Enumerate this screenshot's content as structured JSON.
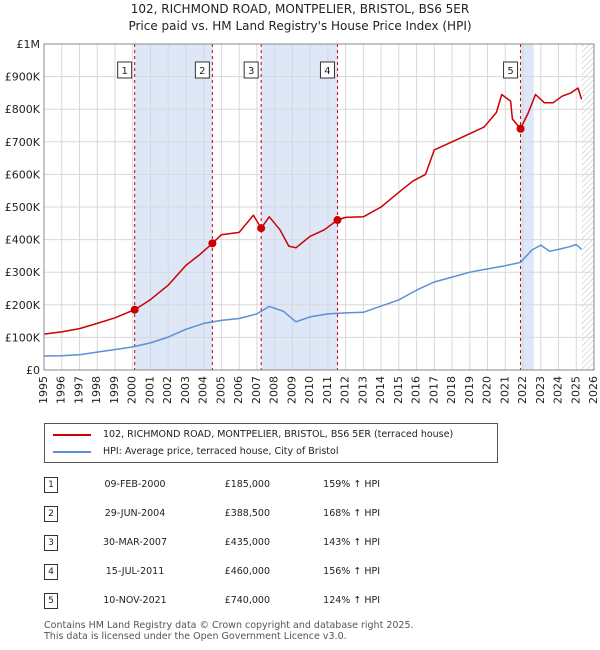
{
  "title_line1": "102, RICHMOND ROAD, MONTPELIER, BRISTOL, BS6 5ER",
  "title_line2": "Price paid vs. HM Land Registry's House Price Index (HPI)",
  "colors": {
    "property": "#cc0000",
    "hpi": "#5b8fd6",
    "shade": "#dde7f7",
    "grid": "#d8d8d8",
    "vline": "#cc0000"
  },
  "chart_data": {
    "type": "line",
    "x_range": [
      1995,
      2026
    ],
    "ylim": [
      0,
      1000000
    ],
    "y_ticks": [
      {
        "value": 0,
        "label": "£0"
      },
      {
        "value": 100000,
        "label": "£100K"
      },
      {
        "value": 200000,
        "label": "£200K"
      },
      {
        "value": 300000,
        "label": "£300K"
      },
      {
        "value": 400000,
        "label": "£400K"
      },
      {
        "value": 500000,
        "label": "£500K"
      },
      {
        "value": 600000,
        "label": "£600K"
      },
      {
        "value": 700000,
        "label": "£700K"
      },
      {
        "value": 800000,
        "label": "£800K"
      },
      {
        "value": 900000,
        "label": "£900K"
      },
      {
        "value": 1000000,
        "label": "£1M"
      }
    ],
    "x_ticks": [
      "1995",
      "1996",
      "1997",
      "1998",
      "1999",
      "2000",
      "2001",
      "2002",
      "2003",
      "2004",
      "2005",
      "2006",
      "2007",
      "2008",
      "2009",
      "2010",
      "2011",
      "2012",
      "2013",
      "2014",
      "2015",
      "2016",
      "2017",
      "2018",
      "2019",
      "2020",
      "2021",
      "2022",
      "2023",
      "2024",
      "2025",
      "2026"
    ],
    "grid": true,
    "series": [
      {
        "name": "102, RICHMOND ROAD, MONTPELIER, BRISTOL, BS6 5ER (terraced house)",
        "x": [
          1995,
          1996,
          1997,
          1998,
          1999,
          2000.11,
          2001,
          2002,
          2003,
          2003.8,
          2004.49,
          2005,
          2006,
          2006.8,
          2007.24,
          2007.7,
          2008.3,
          2008.8,
          2009.2,
          2010,
          2010.8,
          2011.54,
          2012,
          2013,
          2014,
          2015,
          2015.8,
          2016.5,
          2017,
          2018,
          2019,
          2019.8,
          2020.5,
          2020.8,
          2021.3,
          2021.4,
          2021.86,
          2022.3,
          2022.7,
          2023.2,
          2023.7,
          2024.2,
          2024.7,
          2025.1,
          2025.3
        ],
        "y": [
          110000,
          117000,
          127000,
          143000,
          160000,
          185000,
          216000,
          260000,
          321000,
          355000,
          388500,
          415000,
          422000,
          475000,
          435000,
          470000,
          430000,
          380000,
          375000,
          410000,
          430000,
          460000,
          468000,
          470000,
          500000,
          545000,
          580000,
          600000,
          675000,
          700000,
          725000,
          745000,
          790000,
          845000,
          825000,
          770000,
          740000,
          790000,
          845000,
          820000,
          820000,
          840000,
          850000,
          865000,
          830000
        ]
      },
      {
        "name": "HPI: Average price, terraced house, City of Bristol",
        "x": [
          1995,
          1996,
          1997,
          1998,
          1999,
          2000,
          2001,
          2002,
          2003,
          2004,
          2005,
          2006,
          2007,
          2007.7,
          2008.5,
          2009.2,
          2010,
          2011,
          2012,
          2013,
          2014,
          2015,
          2016,
          2017,
          2018,
          2019,
          2020,
          2021,
          2021.86,
          2022.5,
          2023,
          2023.5,
          2024,
          2024.6,
          2025,
          2025.3
        ],
        "y": [
          43000,
          44000,
          47000,
          55000,
          63000,
          71000,
          83000,
          101000,
          125000,
          143000,
          152000,
          158000,
          172000,
          195000,
          180000,
          148000,
          163000,
          172000,
          175000,
          177000,
          196000,
          215000,
          245000,
          270000,
          285000,
          300000,
          310000,
          320000,
          330000,
          368000,
          383000,
          364000,
          370000,
          378000,
          385000,
          370000
        ]
      }
    ],
    "transactions": [
      {
        "num": "1",
        "x": 2000.11,
        "y": 185000,
        "date": "09-FEB-2000",
        "price": "£185,000",
        "hpi": "159% ↑ HPI"
      },
      {
        "num": "2",
        "x": 2004.49,
        "y": 388500,
        "date": "29-JUN-2004",
        "price": "£388,500",
        "hpi": "168% ↑ HPI"
      },
      {
        "num": "3",
        "x": 2007.24,
        "y": 435000,
        "date": "30-MAR-2007",
        "price": "£435,000",
        "hpi": "143% ↑ HPI"
      },
      {
        "num": "4",
        "x": 2011.54,
        "y": 460000,
        "date": "15-JUL-2011",
        "price": "£460,000",
        "hpi": "156% ↑ HPI"
      },
      {
        "num": "5",
        "x": 2021.86,
        "y": 740000,
        "date": "10-NOV-2021",
        "price": "£740,000",
        "hpi": "124% ↑ HPI"
      }
    ],
    "shaded_spans": [
      [
        2000.11,
        2004.49
      ],
      [
        2007.24,
        2011.54
      ],
      [
        2021.86,
        2022.6
      ]
    ],
    "future_start": 2025.3
  },
  "legend": {
    "property_label": "102, RICHMOND ROAD, MONTPELIER, BRISTOL, BS6 5ER (terraced house)",
    "hpi_label": "HPI: Average price, terraced house, City of Bristol"
  },
  "footer": {
    "line1": "Contains HM Land Registry data © Crown copyright and database right 2025.",
    "line2": "This data is licensed under the Open Government Licence v3.0."
  }
}
